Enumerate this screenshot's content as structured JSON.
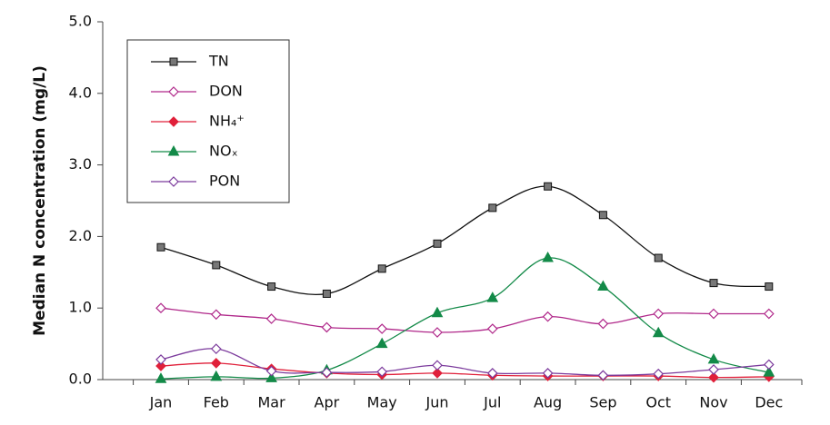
{
  "chart_data": {
    "type": "line",
    "y_label": "Median N concentration (mg/L)",
    "categories": [
      "Jan",
      "Feb",
      "Mar",
      "Apr",
      "May",
      "Jun",
      "Jul",
      "Aug",
      "Sep",
      "Oct",
      "Nov",
      "Dec"
    ],
    "ylim": [
      0,
      5
    ],
    "yticks": [
      {
        "value": 0,
        "label": "0.0"
      },
      {
        "value": 1,
        "label": "1.0"
      },
      {
        "value": 2,
        "label": "2.0"
      },
      {
        "value": 3,
        "label": "3.0"
      },
      {
        "value": 4,
        "label": "4.0"
      },
      {
        "value": 5,
        "label": "5.0"
      }
    ],
    "smooth": true,
    "series": [
      {
        "name": "TN",
        "color": "#111111",
        "marker": "square",
        "marker_fill": "#777777",
        "values": [
          1.85,
          1.6,
          1.3,
          1.2,
          1.55,
          1.9,
          2.4,
          2.7,
          2.3,
          1.7,
          1.35,
          1.3
        ]
      },
      {
        "name": "DON",
        "color": "#b0288a",
        "marker": "diamond",
        "marker_fill": "#ffffff",
        "values": [
          1.0,
          0.91,
          0.85,
          0.73,
          0.71,
          0.66,
          0.71,
          0.88,
          0.78,
          0.92,
          0.92,
          0.92
        ]
      },
      {
        "name": "NH₄⁺",
        "color": "#e0203a",
        "marker": "diamond",
        "marker_fill": "#e0203a",
        "values": [
          0.19,
          0.23,
          0.15,
          0.09,
          0.07,
          0.09,
          0.06,
          0.05,
          0.05,
          0.05,
          0.03,
          0.04
        ]
      },
      {
        "name": "NOₓ",
        "color": "#138a48",
        "marker": "triangle",
        "marker_fill": "#138a48",
        "values": [
          0.01,
          0.04,
          0.02,
          0.13,
          0.5,
          0.93,
          1.14,
          1.7,
          1.3,
          0.65,
          0.28,
          0.1
        ]
      },
      {
        "name": "PON",
        "color": "#7b3a9c",
        "marker": "diamond",
        "marker_fill": "#ffffff",
        "values": [
          0.28,
          0.43,
          0.12,
          0.1,
          0.11,
          0.2,
          0.09,
          0.09,
          0.06,
          0.08,
          0.14,
          0.21
        ]
      }
    ]
  }
}
